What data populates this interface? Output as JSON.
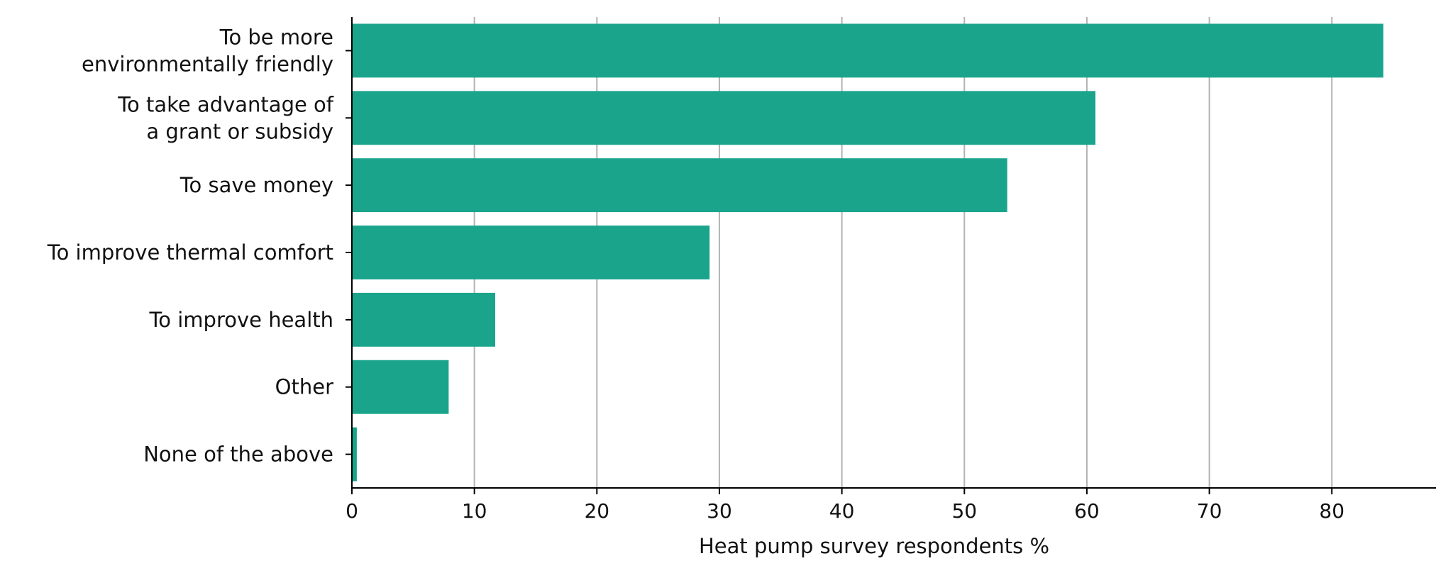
{
  "chart_data": {
    "type": "bar",
    "orientation": "horizontal",
    "categories": [
      [
        "To be more",
        "environmentally friendly"
      ],
      [
        "To take advantage of",
        "a grant or subsidy"
      ],
      [
        "To save money"
      ],
      [
        "To improve thermal comfort"
      ],
      [
        "To improve health"
      ],
      [
        "Other"
      ],
      [
        "None of the above"
      ]
    ],
    "values": [
      84.2,
      60.7,
      53.5,
      29.2,
      11.7,
      7.9,
      0.4
    ],
    "xlabel": "Heat pump survey respondents %",
    "ylabel": "",
    "xlim": [
      0,
      88.5
    ],
    "xticks": [
      0,
      10,
      20,
      30,
      40,
      50,
      60,
      70,
      80
    ],
    "grid": "vertical",
    "bar_color": "#1aa48c"
  }
}
